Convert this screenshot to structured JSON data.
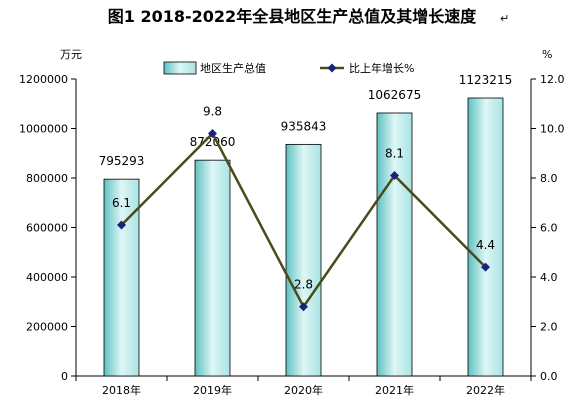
{
  "chart_data": {
    "type": "bar+line",
    "title": "图1  2018-2022年全县地区生产总值及其增长速度",
    "title_mark": "↵",
    "categories": [
      "2018年",
      "2019年",
      "2020年",
      "2021年",
      "2022年"
    ],
    "series": [
      {
        "name": "地区生产总值",
        "kind": "bar",
        "axis": "left",
        "values": [
          795293,
          872060,
          935843,
          1062675,
          1123215
        ]
      },
      {
        "name": "比上年增长%",
        "kind": "line",
        "axis": "right",
        "values": [
          6.1,
          9.8,
          2.8,
          8.1,
          4.4
        ]
      }
    ],
    "left_axis": {
      "unit": "万元",
      "min": 0,
      "max": 1200000,
      "ticks": [
        "0",
        "200000",
        "400000",
        "600000",
        "800000",
        "1000000",
        "1200000"
      ]
    },
    "right_axis": {
      "unit": "%",
      "min": 0,
      "max": 12,
      "ticks": [
        "0.0",
        "2.0",
        "4.0",
        "6.0",
        "8.0",
        "10.0",
        "12.0"
      ]
    },
    "legend_position": "top",
    "grid": false,
    "colors": {
      "bar_gradient_from": "#5fc1c1",
      "bar_gradient_mid": "#dff6f6",
      "bar_gradient_to": "#a9e3e3",
      "bar_border": "#000000",
      "line": "#4a4a1a",
      "marker": "#1a237e"
    }
  }
}
